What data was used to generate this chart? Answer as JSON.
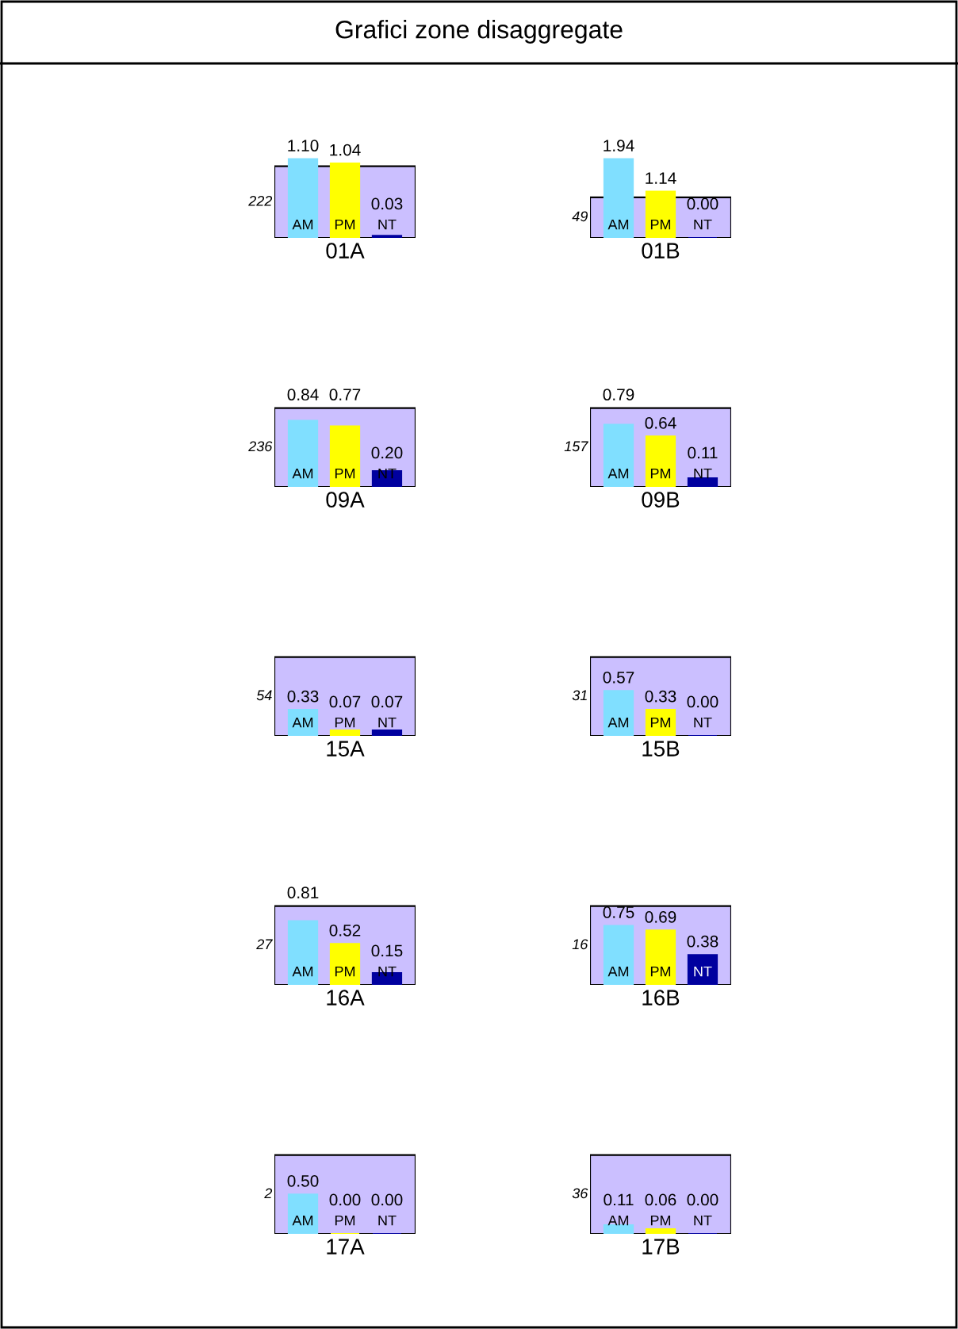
{
  "chart_data": [
    {
      "type": "bar",
      "title": "Grafici zone disaggregate",
      "xlabel": "01A",
      "categories": [
        "AM",
        "PM",
        "NT"
      ],
      "values": [
        1.1,
        1.04,
        0.03
      ],
      "value_labels": [
        "1.10",
        "1.04",
        "0.03"
      ],
      "colors": [
        "#80dfff",
        "#ffff00",
        "#00009f"
      ],
      "bands": [
        {
          "axis": "y",
          "from": 0,
          "to": 1,
          "label": "222",
          "color": "#cbbfff"
        }
      ]
    },
    {
      "type": "bar",
      "xlabel": "01B",
      "categories": [
        "AM",
        "PM",
        "NT"
      ],
      "values": [
        1.94,
        1.14,
        0.0
      ],
      "value_labels": [
        "1.94",
        "1.14",
        "0.00"
      ],
      "colors": [
        "#80dfff",
        "#ffff00",
        "#00009f"
      ],
      "bands": [
        {
          "axis": "y",
          "from": 0,
          "to": 1,
          "label": "49",
          "color": "#cbbfff"
        }
      ]
    },
    {
      "type": "bar",
      "xlabel": "09A",
      "categories": [
        "AM",
        "PM",
        "NT"
      ],
      "values": [
        0.84,
        0.77,
        0.2
      ],
      "value_labels": [
        "0.84",
        "0.77",
        "0.20"
      ],
      "colors": [
        "#80dfff",
        "#ffff00",
        "#00009f"
      ],
      "bands": [
        {
          "axis": "y",
          "from": 0,
          "to": 1,
          "label": "236",
          "color": "#cbbfff"
        }
      ]
    },
    {
      "type": "bar",
      "xlabel": "09B",
      "categories": [
        "AM",
        "PM",
        "NT"
      ],
      "values": [
        0.79,
        0.64,
        0.11
      ],
      "value_labels": [
        "0.79",
        "0.64",
        "0.11"
      ],
      "colors": [
        "#80dfff",
        "#ffff00",
        "#00009f"
      ],
      "bands": [
        {
          "axis": "y",
          "from": 0,
          "to": 1,
          "label": "157",
          "color": "#cbbfff"
        }
      ]
    },
    {
      "type": "bar",
      "xlabel": "15A",
      "categories": [
        "AM",
        "PM",
        "NT"
      ],
      "values": [
        0.33,
        0.07,
        0.07
      ],
      "value_labels": [
        "0.33",
        "0.07",
        "0.07"
      ],
      "colors": [
        "#80dfff",
        "#ffff00",
        "#00009f"
      ],
      "bands": [
        {
          "axis": "y",
          "from": 0,
          "to": 1,
          "label": "54",
          "color": "#cbbfff"
        }
      ]
    },
    {
      "type": "bar",
      "xlabel": "15B",
      "categories": [
        "AM",
        "PM",
        "NT"
      ],
      "values": [
        0.57,
        0.33,
        0.0
      ],
      "value_labels": [
        "0.57",
        "0.33",
        "0.00"
      ],
      "colors": [
        "#80dfff",
        "#ffff00",
        "#00009f"
      ],
      "bands": [
        {
          "axis": "y",
          "from": 0,
          "to": 1,
          "label": "31",
          "color": "#cbbfff"
        }
      ]
    },
    {
      "type": "bar",
      "xlabel": "16A",
      "categories": [
        "AM",
        "PM",
        "NT"
      ],
      "values": [
        0.81,
        0.52,
        0.15
      ],
      "value_labels": [
        "0.81",
        "0.52",
        "0.15"
      ],
      "colors": [
        "#80dfff",
        "#ffff00",
        "#00009f"
      ],
      "bands": [
        {
          "axis": "y",
          "from": 0,
          "to": 1,
          "label": "27",
          "color": "#cbbfff"
        }
      ]
    },
    {
      "type": "bar",
      "xlabel": "16B",
      "categories": [
        "AM",
        "PM",
        "NT"
      ],
      "values": [
        0.75,
        0.69,
        0.38
      ],
      "value_labels": [
        "0.75",
        "0.69",
        "0.38"
      ],
      "colors": [
        "#80dfff",
        "#ffff00",
        "#00009f"
      ],
      "bands": [
        {
          "axis": "y",
          "from": 0,
          "to": 1,
          "label": "16",
          "color": "#cbbfff"
        }
      ]
    },
    {
      "type": "bar",
      "xlabel": "17A",
      "categories": [
        "AM",
        "PM",
        "NT"
      ],
      "values": [
        0.5,
        0.0,
        0.0
      ],
      "value_labels": [
        "0.50",
        "0.00",
        "0.00"
      ],
      "colors": [
        "#80dfff",
        "#ffff00",
        "#00009f"
      ],
      "bands": [
        {
          "axis": "y",
          "from": 0,
          "to": 1,
          "label": "2",
          "color": "#cbbfff"
        }
      ]
    },
    {
      "type": "bar",
      "xlabel": "17B",
      "categories": [
        "AM",
        "PM",
        "NT"
      ],
      "values": [
        0.11,
        0.06,
        0.0
      ],
      "value_labels": [
        "0.11",
        "0.06",
        "0.00"
      ],
      "colors": [
        "#80dfff",
        "#ffff00",
        "#00009f"
      ],
      "bands": [
        {
          "axis": "y",
          "from": 0,
          "to": 1,
          "label": "36",
          "color": "#cbbfff"
        }
      ]
    }
  ]
}
